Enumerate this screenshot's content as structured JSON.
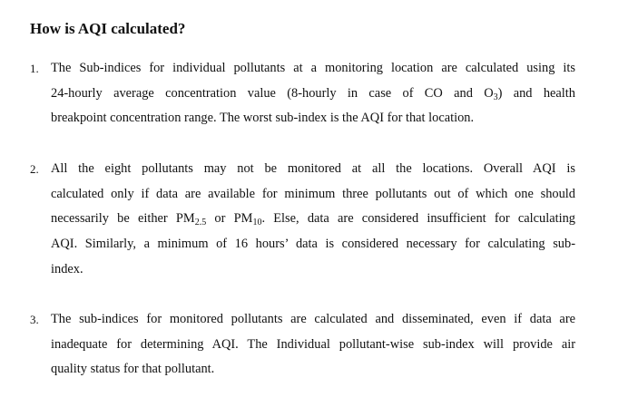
{
  "title": "How is AQI calculated?",
  "items": [
    {
      "number": "1.",
      "lines": [
        "The Sub-indices for individual pollutants at a monitoring location are calculated using its",
        "24-hourly average concentration value (8-hourly in case of CO and O",
        "breakpoint concentration range. The worst sub-index is the AQI for that location."
      ],
      "line2_sub": "3",
      "line2_tail": ") and health"
    },
    {
      "number": "2.",
      "lines": [
        "All the eight pollutants may not be monitored at all the locations. Overall AQI is",
        "calculated only if data are available for minimum three pollutants out of which one should",
        "necessarily be either PM",
        "AQI. Similarly, a minimum of 16 hours’ data is considered necessary for calculating sub-",
        "index."
      ],
      "pm25_sub": "2.5",
      "line3_mid": " or PM",
      "pm10_sub": "10",
      "line3_tail": ". Else, data are considered insufficient for calculating"
    },
    {
      "number": "3.",
      "lines": [
        "The sub-indices for monitored pollutants are calculated and disseminated, even if data are",
        "inadequate for determining AQI. The Individual pollutant-wise sub-index will provide air",
        "quality status for that pollutant."
      ]
    }
  ]
}
